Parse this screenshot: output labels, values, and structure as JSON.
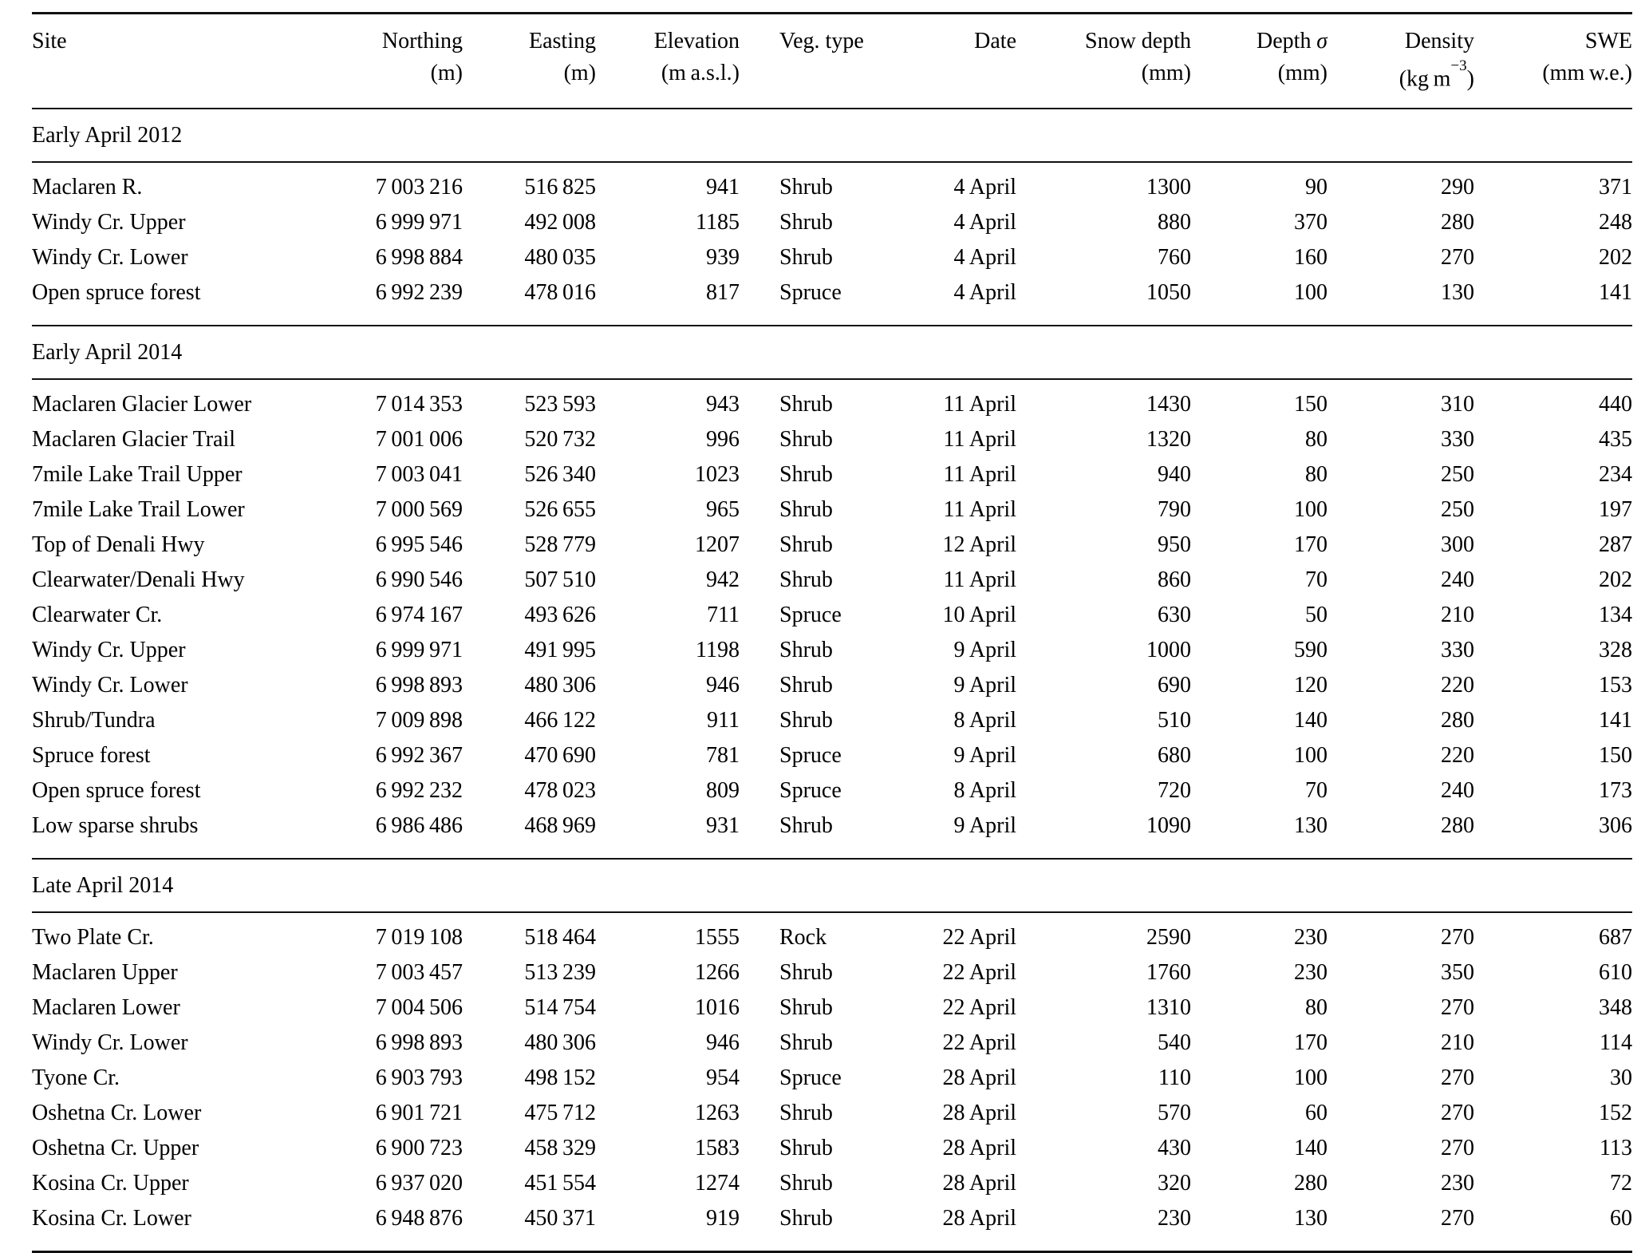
{
  "table": {
    "columns": [
      {
        "key": "site",
        "label": "Site",
        "unit": ""
      },
      {
        "key": "northing",
        "label": "Northing",
        "unit": "(m)"
      },
      {
        "key": "easting",
        "label": "Easting",
        "unit": "(m)"
      },
      {
        "key": "elevation",
        "label": "Elevation",
        "unit": "(m a.s.l.)"
      },
      {
        "key": "veg-type",
        "label": "Veg. type",
        "unit": ""
      },
      {
        "key": "date",
        "label": "Date",
        "unit": ""
      },
      {
        "key": "snow-depth",
        "label": "Snow depth",
        "unit": "(mm)"
      },
      {
        "key": "depth-sigma",
        "label_pre": "Depth",
        "label_sigma": "σ",
        "unit": "(mm)"
      },
      {
        "key": "density",
        "label": "Density",
        "unit_pre": "(kg m",
        "unit_sup": "−3",
        "unit_post": ")"
      },
      {
        "key": "swe",
        "label": "SWE",
        "unit": "(mm w.e.)"
      }
    ],
    "sections": [
      {
        "title": "Early April 2012",
        "rows": [
          [
            "Maclaren R.",
            "7 003 216",
            "516 825",
            "941",
            "Shrub",
            "4 April",
            "1300",
            "90",
            "290",
            "371"
          ],
          [
            "Windy Cr. Upper",
            "6 999 971",
            "492 008",
            "1185",
            "Shrub",
            "4 April",
            "880",
            "370",
            "280",
            "248"
          ],
          [
            "Windy Cr. Lower",
            "6 998 884",
            "480 035",
            "939",
            "Shrub",
            "4 April",
            "760",
            "160",
            "270",
            "202"
          ],
          [
            "Open spruce forest",
            "6 992 239",
            "478 016",
            "817",
            "Spruce",
            "4 April",
            "1050",
            "100",
            "130",
            "141"
          ]
        ]
      },
      {
        "title": "Early April 2014",
        "rows": [
          [
            "Maclaren Glacier Lower",
            "7 014 353",
            "523 593",
            "943",
            "Shrub",
            "11 April",
            "1430",
            "150",
            "310",
            "440"
          ],
          [
            "Maclaren Glacier Trail",
            "7 001 006",
            "520 732",
            "996",
            "Shrub",
            "11 April",
            "1320",
            "80",
            "330",
            "435"
          ],
          [
            "7mile Lake Trail Upper",
            "7 003 041",
            "526 340",
            "1023",
            "Shrub",
            "11 April",
            "940",
            "80",
            "250",
            "234"
          ],
          [
            "7mile Lake Trail Lower",
            "7 000 569",
            "526 655",
            "965",
            "Shrub",
            "11 April",
            "790",
            "100",
            "250",
            "197"
          ],
          [
            "Top of Denali Hwy",
            "6 995 546",
            "528 779",
            "1207",
            "Shrub",
            "12 April",
            "950",
            "170",
            "300",
            "287"
          ],
          [
            "Clearwater/Denali Hwy",
            "6 990 546",
            "507 510",
            "942",
            "Shrub",
            "11 April",
            "860",
            "70",
            "240",
            "202"
          ],
          [
            "Clearwater Cr.",
            "6 974 167",
            "493 626",
            "711",
            "Spruce",
            "10 April",
            "630",
            "50",
            "210",
            "134"
          ],
          [
            "Windy Cr. Upper",
            "6 999 971",
            "491 995",
            "1198",
            "Shrub",
            "9 April",
            "1000",
            "590",
            "330",
            "328"
          ],
          [
            "Windy Cr. Lower",
            "6 998 893",
            "480 306",
            "946",
            "Shrub",
            "9 April",
            "690",
            "120",
            "220",
            "153"
          ],
          [
            "Shrub/Tundra",
            "7 009 898",
            "466 122",
            "911",
            "Shrub",
            "8 April",
            "510",
            "140",
            "280",
            "141"
          ],
          [
            "Spruce forest",
            "6 992 367",
            "470 690",
            "781",
            "Spruce",
            "9 April",
            "680",
            "100",
            "220",
            "150"
          ],
          [
            "Open spruce forest",
            "6 992 232",
            "478 023",
            "809",
            "Spruce",
            "8 April",
            "720",
            "70",
            "240",
            "173"
          ],
          [
            "Low sparse shrubs",
            "6 986 486",
            "468 969",
            "931",
            "Shrub",
            "9 April",
            "1090",
            "130",
            "280",
            "306"
          ]
        ]
      },
      {
        "title": "Late April 2014",
        "rows": [
          [
            "Two Plate Cr.",
            "7 019 108",
            "518 464",
            "1555",
            "Rock",
            "22 April",
            "2590",
            "230",
            "270",
            "687"
          ],
          [
            "Maclaren Upper",
            "7 003 457",
            "513 239",
            "1266",
            "Shrub",
            "22 April",
            "1760",
            "230",
            "350",
            "610"
          ],
          [
            "Maclaren Lower",
            "7 004 506",
            "514 754",
            "1016",
            "Shrub",
            "22 April",
            "1310",
            "80",
            "270",
            "348"
          ],
          [
            "Windy Cr. Lower",
            "6 998 893",
            "480 306",
            "946",
            "Shrub",
            "22 April",
            "540",
            "170",
            "210",
            "114"
          ],
          [
            "Tyone Cr.",
            "6 903 793",
            "498 152",
            "954",
            "Spruce",
            "28 April",
            "110",
            "100",
            "270",
            "30"
          ],
          [
            "Oshetna Cr. Lower",
            "6 901 721",
            "475 712",
            "1263",
            "Shrub",
            "28 April",
            "570",
            "60",
            "270",
            "152"
          ],
          [
            "Oshetna Cr. Upper",
            "6 900 723",
            "458 329",
            "1583",
            "Shrub",
            "28 April",
            "430",
            "140",
            "270",
            "113"
          ],
          [
            "Kosina Cr. Upper",
            "6 937 020",
            "451 554",
            "1274",
            "Shrub",
            "28 April",
            "320",
            "280",
            "230",
            "72"
          ],
          [
            "Kosina Cr. Lower",
            "6 948 876",
            "450 371",
            "919",
            "Shrub",
            "28 April",
            "230",
            "130",
            "270",
            "60"
          ]
        ]
      }
    ]
  }
}
